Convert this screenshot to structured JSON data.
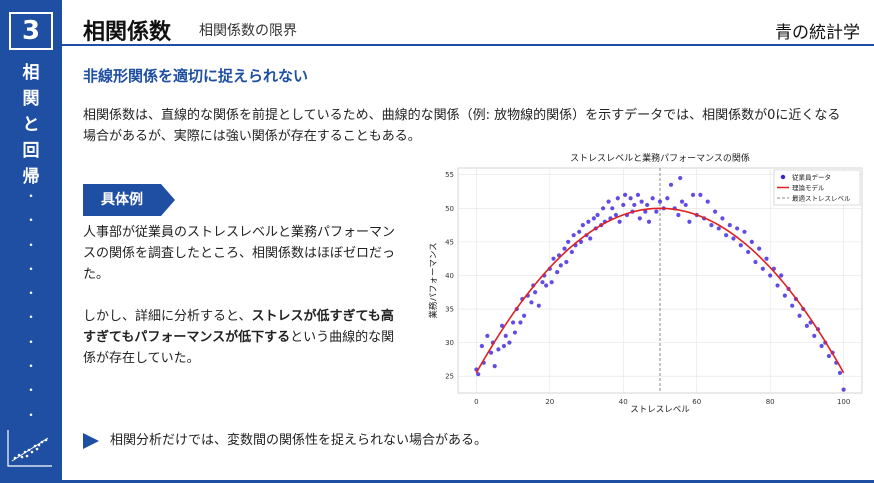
{
  "chapter_number": "3",
  "sidebar": {
    "vertical_title_chars": [
      "相",
      "関",
      "と",
      "回",
      "帰"
    ],
    "dots": [
      "・",
      "・",
      "・",
      "・",
      "・",
      "・",
      "・",
      "・",
      "・",
      "・"
    ]
  },
  "header": {
    "title": "相関係数",
    "subtitle": "相関係数の限界",
    "brand": "青の統計学"
  },
  "section_heading": "非線形関係を適切に捉えられない",
  "intro_text": "相関係数は、直線的な関係を前提としているため、曲線的な関係（例: 放物線的関係）を示すデータでは、相関係数が0に近くなる場合があるが、実際には強い関係が存在することもある。",
  "example": {
    "label": "具体例",
    "paragraph1": "人事部が従業員のストレスレベルと業務パフォーマンスの関係を調査したところ、相関係数はほぼゼロだった。",
    "paragraph2_pre": "しかし、詳細に分析すると、",
    "paragraph2_bold": "ストレスが低すぎても高すぎてもパフォーマンスが低下する",
    "paragraph2_post": "という曲線的な関係が存在していた。"
  },
  "conclusion": "相関分析だけでは、変数間の関係性を捉えられない場合がある。",
  "colors": {
    "brand_blue": "#1f4fa3",
    "point_color": "#3a1fe0",
    "model_color": "#e02020",
    "vline_color": "#888888"
  },
  "chart_data": {
    "type": "scatter",
    "title": "ストレスレベルと業務パフォーマンスの関係",
    "xlabel": "ストレスレベル",
    "ylabel": "業務パフォーマンス",
    "xlim": [
      -5,
      105
    ],
    "ylim": [
      22.5,
      56
    ],
    "xticks": [
      0,
      20,
      40,
      60,
      80,
      100
    ],
    "yticks": [
      25,
      30,
      35,
      40,
      45,
      50,
      55
    ],
    "grid": true,
    "legend_position": "top-right",
    "legend": [
      "従業員データ",
      "理論モデル",
      "最適ストレスレベル"
    ],
    "optimal_x": 50,
    "model": {
      "vertex_x": 50,
      "vertex_y": 50,
      "curvature": 0.0098
    },
    "points": [
      [
        0,
        26
      ],
      [
        0.5,
        25.3
      ],
      [
        1.5,
        29.5
      ],
      [
        2,
        27
      ],
      [
        3,
        31
      ],
      [
        4,
        28.5
      ],
      [
        4.5,
        30
      ],
      [
        5,
        26.5
      ],
      [
        6,
        29
      ],
      [
        7,
        32.5
      ],
      [
        7.5,
        29.5
      ],
      [
        8,
        31
      ],
      [
        9,
        30
      ],
      [
        10,
        33
      ],
      [
        10.5,
        31.5
      ],
      [
        11,
        35
      ],
      [
        12,
        33
      ],
      [
        12.5,
        36.5
      ],
      [
        13,
        34
      ],
      [
        14,
        37
      ],
      [
        15,
        36
      ],
      [
        15.5,
        38.5
      ],
      [
        16,
        37.5
      ],
      [
        17,
        35.5
      ],
      [
        18,
        39
      ],
      [
        18.5,
        40
      ],
      [
        19,
        38.5
      ],
      [
        20,
        41
      ],
      [
        20.5,
        39
      ],
      [
        21,
        42.5
      ],
      [
        22,
        40.5
      ],
      [
        22.5,
        43
      ],
      [
        23,
        41.5
      ],
      [
        24,
        44
      ],
      [
        24.5,
        42
      ],
      [
        25,
        45
      ],
      [
        26,
        43.5
      ],
      [
        26.5,
        46
      ],
      [
        27,
        44.5
      ],
      [
        28,
        46.5
      ],
      [
        28.5,
        45
      ],
      [
        29,
        47.5
      ],
      [
        30,
        46
      ],
      [
        30.5,
        48
      ],
      [
        31,
        45.5
      ],
      [
        32,
        48.5
      ],
      [
        32.5,
        47
      ],
      [
        33,
        49
      ],
      [
        34,
        47.5
      ],
      [
        34.5,
        50
      ],
      [
        35,
        48
      ],
      [
        36,
        51
      ],
      [
        36.5,
        48.5
      ],
      [
        37,
        50
      ],
      [
        38,
        49
      ],
      [
        38.5,
        51.5
      ],
      [
        39,
        48
      ],
      [
        40,
        50.5
      ],
      [
        40.5,
        52
      ],
      [
        41,
        49
      ],
      [
        42,
        51.5
      ],
      [
        42.5,
        49.5
      ],
      [
        43,
        50.5
      ],
      [
        44,
        52
      ],
      [
        44.5,
        48.5
      ],
      [
        45,
        51
      ],
      [
        46,
        49.5
      ],
      [
        46.5,
        50.5
      ],
      [
        47,
        48
      ],
      [
        48,
        51.5
      ],
      [
        49,
        49.5
      ],
      [
        50,
        51
      ],
      [
        51,
        50
      ],
      [
        52,
        51.5
      ],
      [
        53,
        53.5
      ],
      [
        54,
        50
      ],
      [
        55,
        49
      ],
      [
        55.5,
        54.5
      ],
      [
        56,
        51
      ],
      [
        57,
        50.5
      ],
      [
        58,
        48
      ],
      [
        59,
        52
      ],
      [
        60,
        49
      ],
      [
        61,
        52
      ],
      [
        62,
        48.5
      ],
      [
        63,
        51
      ],
      [
        64,
        47.5
      ],
      [
        65,
        49.5
      ],
      [
        66,
        47
      ],
      [
        67,
        48.5
      ],
      [
        68,
        46
      ],
      [
        69,
        47.5
      ],
      [
        70,
        45.5
      ],
      [
        71,
        47
      ],
      [
        72,
        44.5
      ],
      [
        73,
        46.5
      ],
      [
        74,
        43.5
      ],
      [
        75,
        45
      ],
      [
        76,
        42
      ],
      [
        77,
        44
      ],
      [
        78,
        41
      ],
      [
        79,
        42.5
      ],
      [
        80,
        40
      ],
      [
        81,
        41
      ],
      [
        82,
        38.5
      ],
      [
        83,
        40
      ],
      [
        84,
        37
      ],
      [
        85,
        38
      ],
      [
        86,
        35.5
      ],
      [
        87,
        36.5
      ],
      [
        88,
        34
      ],
      [
        89,
        35
      ],
      [
        90,
        32.5
      ],
      [
        91,
        33
      ],
      [
        92,
        31
      ],
      [
        93,
        32
      ],
      [
        94,
        29.5
      ],
      [
        95,
        30
      ],
      [
        96,
        28
      ],
      [
        97,
        28.5
      ],
      [
        98,
        27
      ],
      [
        99,
        25.5
      ],
      [
        100,
        23
      ]
    ]
  }
}
